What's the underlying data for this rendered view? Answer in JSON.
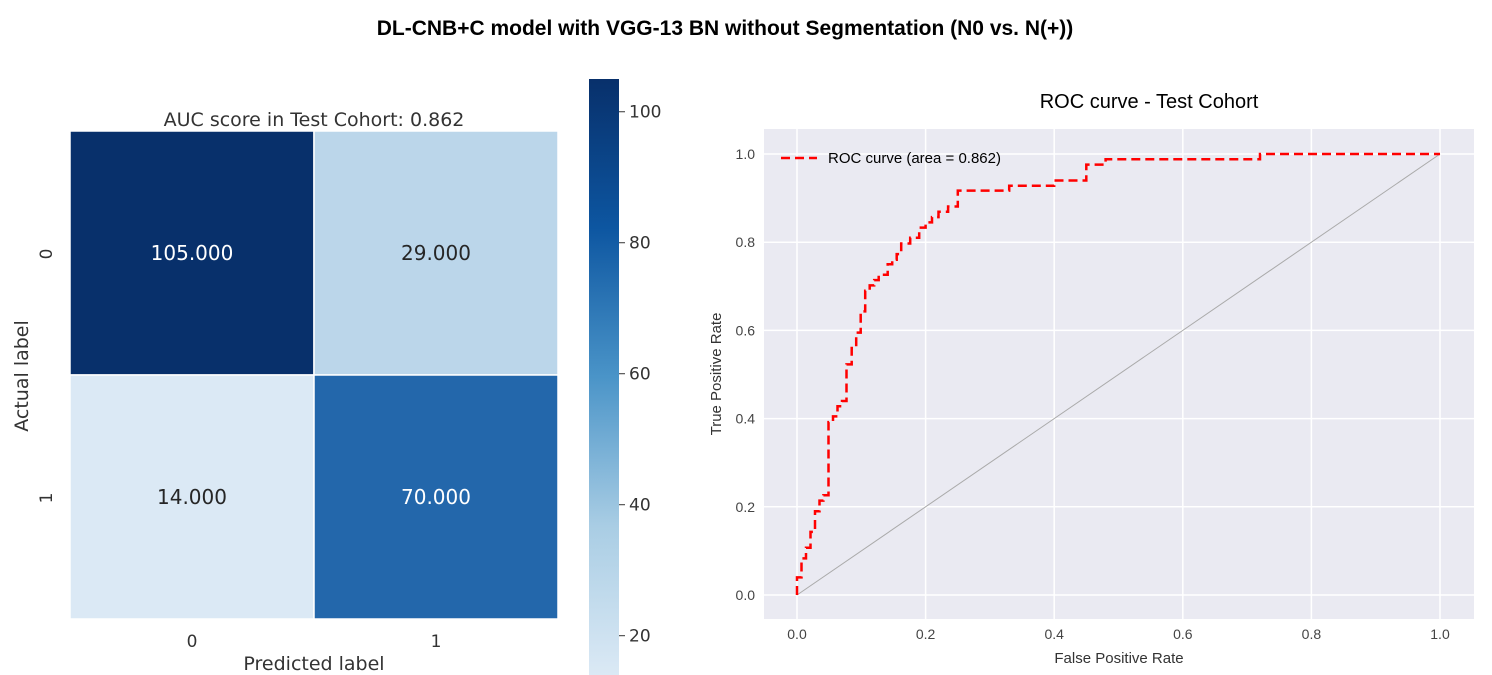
{
  "figure_title": "DL-CNB+C model with VGG-13 BN without Segmentation (N0 vs. N(+))",
  "colors": {
    "roc_line": "#ff0000",
    "diagonal": "#aaaaaa",
    "plot_bg": "#eaeaf2",
    "grid": "#ffffff",
    "cmap": [
      "#dbe9f5",
      "#9ac2df",
      "#0d56a1",
      "#08306b"
    ]
  },
  "chart_data": [
    {
      "type": "heatmap",
      "title": "AUC score in Test Cohort: 0.862",
      "xlabel": "Predicted label",
      "ylabel": "Actual label",
      "x_categories": [
        "0",
        "1"
      ],
      "y_categories": [
        "0",
        "1"
      ],
      "values": [
        [
          105,
          29
        ],
        [
          14,
          70
        ]
      ],
      "cell_labels": [
        [
          "105.000",
          "29.000"
        ],
        [
          "14.000",
          "70.000"
        ]
      ],
      "colorbar": {
        "range": [
          14,
          105
        ],
        "ticks": [
          "100",
          "80",
          "60",
          "40",
          "20"
        ],
        "tick_values": [
          100,
          80,
          60,
          40,
          20
        ]
      }
    },
    {
      "type": "line",
      "title": "ROC curve - Test Cohort",
      "xlabel": "False Positive Rate",
      "ylabel": "True Positive Rate",
      "xlim": [
        0.0,
        1.0
      ],
      "ylim": [
        0.0,
        1.0
      ],
      "x_ticks": [
        "0.0",
        "0.2",
        "0.4",
        "0.6",
        "0.8",
        "1.0"
      ],
      "y_ticks": [
        "0.0",
        "0.2",
        "0.4",
        "0.6",
        "0.8",
        "1.0"
      ],
      "grid": true,
      "legend_position": "top-left",
      "series": [
        {
          "name": "ROC curve (area = 0.862)",
          "style": "dashed",
          "x": [
            0.0,
            0.0,
            0.007,
            0.007,
            0.014,
            0.014,
            0.021,
            0.021,
            0.028,
            0.028,
            0.035,
            0.035,
            0.041,
            0.041,
            0.049,
            0.049,
            0.056,
            0.056,
            0.063,
            0.063,
            0.07,
            0.07,
            0.077,
            0.077,
            0.085,
            0.085,
            0.092,
            0.092,
            0.099,
            0.099,
            0.106,
            0.106,
            0.113,
            0.113,
            0.12,
            0.12,
            0.127,
            0.127,
            0.134,
            0.134,
            0.141,
            0.141,
            0.148,
            0.148,
            0.155,
            0.155,
            0.162,
            0.162,
            0.169,
            0.169,
            0.176,
            0.176,
            0.19,
            0.19,
            0.2,
            0.2,
            0.21,
            0.21,
            0.22,
            0.22,
            0.235,
            0.235,
            0.25,
            0.25,
            0.33,
            0.33,
            0.4,
            0.4,
            0.45,
            0.45,
            0.48,
            0.48,
            0.72,
            0.72,
            0.92,
            0.92,
            1.0
          ],
          "y": [
            0.0,
            0.04,
            0.04,
            0.083,
            0.083,
            0.107,
            0.107,
            0.143,
            0.143,
            0.19,
            0.19,
            0.214,
            0.214,
            0.226,
            0.226,
            0.392,
            0.392,
            0.405,
            0.405,
            0.428,
            0.428,
            0.44,
            0.44,
            0.523,
            0.523,
            0.56,
            0.56,
            0.595,
            0.595,
            0.643,
            0.643,
            0.69,
            0.69,
            0.702,
            0.702,
            0.714,
            0.714,
            0.726,
            0.726,
            0.726,
            0.726,
            0.75,
            0.75,
            0.76,
            0.76,
            0.773,
            0.773,
            0.797,
            0.797,
            0.797,
            0.797,
            0.81,
            0.81,
            0.833,
            0.833,
            0.845,
            0.845,
            0.857,
            0.857,
            0.869,
            0.869,
            0.881,
            0.881,
            0.917,
            0.917,
            0.928,
            0.928,
            0.94,
            0.94,
            0.976,
            0.976,
            0.988,
            0.988,
            1.0,
            1.0,
            1.0,
            1.0
          ]
        },
        {
          "name": "",
          "style": "solid",
          "x": [
            0.0,
            1.0
          ],
          "y": [
            0.0,
            1.0
          ]
        }
      ]
    }
  ]
}
